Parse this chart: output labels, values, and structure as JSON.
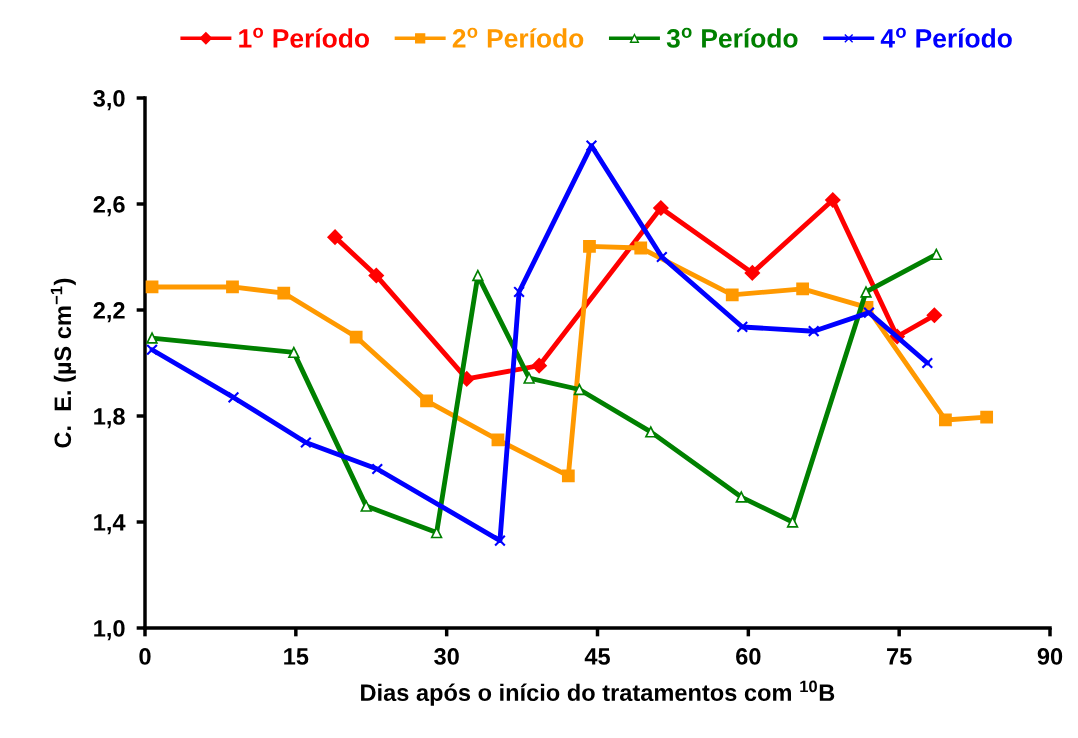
{
  "chart_data": {
    "type": "line",
    "xlabel": "Dias após o início do tratamentos com $^{10}$B",
    "ylabel": "C.  E. (µS cm$^{−1}$)",
    "xlim": [
      0,
      90
    ],
    "xticks": [
      0,
      15,
      30,
      45,
      60,
      75,
      90
    ],
    "ylim": [
      1.0,
      3.0
    ],
    "yticks": [
      {
        "value": 1.0,
        "label": "1,0"
      },
      {
        "value": 1.4,
        "label": "1,4"
      },
      {
        "value": 1.8,
        "label": "1,8"
      },
      {
        "value": 2.2,
        "label": "2,2"
      },
      {
        "value": 2.6,
        "label": "2,6"
      },
      {
        "value": 3.0,
        "label": "3,0"
      }
    ],
    "grid": false,
    "legend": "top",
    "line_style": "solid",
    "series": [
      {
        "name": "1$^{o}$ Período",
        "color": "#ff0000",
        "marker": "diamond",
        "x": [
          18.9,
          23,
          32,
          39.2,
          51.3,
          60.4,
          68.4,
          74.8,
          78.5
        ],
        "values": [
          2.475,
          2.33,
          1.94,
          1.99,
          2.585,
          2.34,
          2.615,
          2.1,
          2.18
        ]
      },
      {
        "name": "2$^{o}$ Período",
        "color": "#ff9900",
        "marker": "square",
        "x": [
          0.7,
          8.7,
          13.8,
          21,
          28,
          35.1,
          42.1,
          44.2,
          49.3,
          58.4,
          65.4,
          71.8,
          79.6,
          83.7
        ],
        "values": [
          2.287,
          2.287,
          2.264,
          2.098,
          1.857,
          1.71,
          1.574,
          2.44,
          2.434,
          2.257,
          2.28,
          2.21,
          1.785,
          1.796
        ]
      },
      {
        "name": "3$^{o}$ Período",
        "color": "#008000",
        "marker": "triangle",
        "x": [
          0.7,
          14.8,
          22,
          29,
          33.1,
          38.2,
          43.2,
          50.3,
          59.3,
          64.4,
          71.7,
          78.7
        ],
        "values": [
          2.094,
          2.04,
          1.46,
          1.36,
          2.33,
          1.943,
          1.9,
          1.74,
          1.494,
          1.4,
          2.268,
          2.41
        ]
      },
      {
        "name": "4$^{o}$ Período",
        "color": "#0000ff",
        "marker": "cross",
        "x": [
          0.7,
          8.8,
          16,
          23.1,
          35.3,
          37.2,
          44.4,
          51.4,
          59.4,
          66.5,
          72,
          77.8
        ],
        "values": [
          2.05,
          1.87,
          1.7,
          1.6,
          1.33,
          2.268,
          2.82,
          2.4,
          2.136,
          2.12,
          2.19,
          2.0
        ]
      }
    ]
  }
}
